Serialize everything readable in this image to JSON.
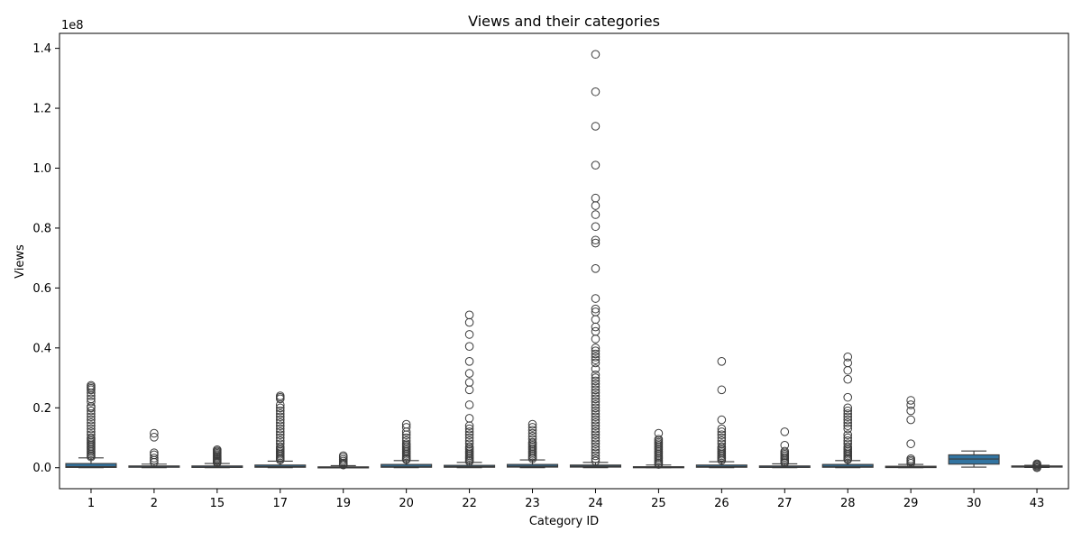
{
  "chart_data": {
    "type": "box",
    "title": "Views and their categories",
    "xlabel": "Category ID",
    "ylabel": "Views",
    "y_multiplier_label": "1e8",
    "ylim": [
      -7000000,
      145000000
    ],
    "yticks": [
      0,
      20000000,
      40000000,
      60000000,
      80000000,
      100000000,
      120000000,
      140000000
    ],
    "ytick_labels": [
      "0.0",
      "0.2",
      "0.4",
      "0.6",
      "0.8",
      "1.0",
      "1.2",
      "1.4"
    ],
    "box_color": "#3274a1",
    "edge_color": "#3b3b3b",
    "grid": false,
    "categories": [
      "1",
      "2",
      "15",
      "17",
      "19",
      "20",
      "22",
      "23",
      "24",
      "25",
      "26",
      "27",
      "28",
      "29",
      "30",
      "43"
    ],
    "boxes": [
      {
        "category": "1",
        "whisker_low": 0,
        "q1": 100000,
        "median": 400000,
        "q3": 1400000,
        "whisker_high": 3300000,
        "outliers": [
          27500000,
          27000000,
          26500000,
          26000000,
          25000000,
          24000000,
          23000000,
          22000000,
          20500000,
          20000000,
          19000000,
          18000000,
          17000000,
          16000000,
          15000000,
          14000000,
          13000000,
          12000000,
          11000000,
          10000000,
          9500000,
          9000000,
          8500000,
          8000000,
          7500000,
          7000000,
          6500000,
          6000000,
          5500000,
          5000000,
          4500000,
          4000000,
          3600000
        ]
      },
      {
        "category": "2",
        "whisker_low": 0,
        "q1": 150000,
        "median": 300000,
        "q3": 600000,
        "whisker_high": 1200000,
        "outliers": [
          11500000,
          10200000,
          5000000,
          4300000,
          3200000,
          2500000,
          1800000
        ]
      },
      {
        "category": "15",
        "whisker_low": 0,
        "q1": 100000,
        "median": 250000,
        "q3": 600000,
        "whisker_high": 1400000,
        "outliers": [
          6000000,
          5600000,
          5200000,
          4800000,
          4400000,
          4000000,
          3600000,
          3200000,
          2800000,
          2400000,
          2000000,
          1700000
        ]
      },
      {
        "category": "17",
        "whisker_low": 0,
        "q1": 150000,
        "median": 400000,
        "q3": 900000,
        "whisker_high": 2200000,
        "outliers": [
          24000000,
          23500000,
          23000000,
          21000000,
          20000000,
          19000000,
          18000000,
          17000000,
          16000000,
          15000000,
          14000000,
          13000000,
          12000000,
          11000000,
          10000000,
          9000000,
          8000000,
          7000000,
          6500000,
          6000000,
          5500000,
          5000000,
          4500000,
          4000000,
          3500000,
          3000000,
          2600000
        ]
      },
      {
        "category": "19",
        "whisker_low": 0,
        "q1": 50000,
        "median": 120000,
        "q3": 300000,
        "whisker_high": 700000,
        "outliers": [
          4000000,
          3500000,
          2800000,
          2200000,
          1600000,
          1200000,
          900000
        ]
      },
      {
        "category": "20",
        "whisker_low": 0,
        "q1": 150000,
        "median": 450000,
        "q3": 1100000,
        "whisker_high": 2400000,
        "outliers": [
          14500000,
          13500000,
          12000000,
          11000000,
          10000000,
          9000000,
          8000000,
          7500000,
          7000000,
          6500000,
          6000000,
          5500000,
          5000000,
          4500000,
          4000000,
          3500000,
          3000000,
          2700000
        ]
      },
      {
        "category": "22",
        "whisker_low": 0,
        "q1": 150000,
        "median": 400000,
        "q3": 800000,
        "whisker_high": 1800000,
        "outliers": [
          51000000,
          48500000,
          44500000,
          40500000,
          35500000,
          31500000,
          28500000,
          26000000,
          21000000,
          16500000,
          14000000,
          13000000,
          12000000,
          11000000,
          10000000,
          9000000,
          8000000,
          7000000,
          6500000,
          6000000,
          5500000,
          5000000,
          4500000,
          4000000,
          3500000,
          3000000,
          2500000,
          2100000
        ]
      },
      {
        "category": "23",
        "whisker_low": 0,
        "q1": 200000,
        "median": 500000,
        "q3": 1100000,
        "whisker_high": 2600000,
        "outliers": [
          14500000,
          13500000,
          12500000,
          11500000,
          10500000,
          9500000,
          8500000,
          8000000,
          7500000,
          7000000,
          6500000,
          6000000,
          5500000,
          5000000,
          4500000,
          4000000,
          3500000,
          3000000
        ]
      },
      {
        "category": "24",
        "whisker_low": 0,
        "q1": 200000,
        "median": 500000,
        "q3": 900000,
        "whisker_high": 1800000,
        "outliers": [
          138000000,
          125500000,
          114000000,
          101000000,
          90000000,
          87500000,
          84500000,
          80500000,
          76000000,
          75000000,
          66500000,
          56500000,
          53000000,
          52000000,
          49500000,
          47000000,
          45500000,
          43000000,
          40000000,
          39000000,
          38000000,
          37000000,
          36000000,
          35000000,
          33000000,
          31000000,
          30000000,
          29000000,
          28000000,
          27000000,
          26000000,
          25000000,
          24000000,
          23000000,
          22000000,
          21000000,
          20000000,
          19000000,
          18000000,
          17000000,
          16000000,
          15000000,
          14000000,
          13000000,
          12000000,
          11000000,
          10000000,
          9000000,
          8000000,
          7000000,
          6000000,
          5000000,
          4000000,
          3000000,
          2200000
        ]
      },
      {
        "category": "25",
        "whisker_low": 0,
        "q1": 50000,
        "median": 150000,
        "q3": 350000,
        "whisker_high": 900000,
        "outliers": [
          11500000,
          9500000,
          9000000,
          8500000,
          8000000,
          7500000,
          7000000,
          6500000,
          6000000,
          5500000,
          5000000,
          4500000,
          4000000,
          3500000,
          3000000,
          2500000,
          2000000,
          1500000,
          1100000
        ]
      },
      {
        "category": "26",
        "whisker_low": 0,
        "q1": 150000,
        "median": 400000,
        "q3": 900000,
        "whisker_high": 2000000,
        "outliers": [
          35500000,
          26000000,
          16000000,
          13000000,
          12000000,
          11000000,
          10000000,
          9000000,
          8000000,
          7000000,
          6500000,
          6000000,
          5500000,
          5000000,
          4500000,
          4000000,
          3500000,
          3000000,
          2500000
        ]
      },
      {
        "category": "27",
        "whisker_low": 0,
        "q1": 100000,
        "median": 250000,
        "q3": 600000,
        "whisker_high": 1300000,
        "outliers": [
          12000000,
          7500000,
          5500000,
          5000000,
          4500000,
          4000000,
          3500000,
          3000000,
          2500000,
          2000000,
          1600000
        ]
      },
      {
        "category": "28",
        "whisker_low": 0,
        "q1": 150000,
        "median": 450000,
        "q3": 1100000,
        "whisker_high": 2400000,
        "outliers": [
          37000000,
          35000000,
          32500000,
          29500000,
          23500000,
          20000000,
          19000000,
          18000000,
          17000000,
          16000000,
          15000000,
          14000000,
          13000000,
          11000000,
          10000000,
          9000000,
          8000000,
          7000000,
          6500000,
          6000000,
          5500000,
          5000000,
          4500000,
          4000000,
          3500000,
          3000000,
          2700000
        ]
      },
      {
        "category": "29",
        "whisker_low": 0,
        "q1": 50000,
        "median": 200000,
        "q3": 500000,
        "whisker_high": 1100000,
        "outliers": [
          22500000,
          21000000,
          19000000,
          16000000,
          8000000,
          3000000,
          2500000,
          2000000,
          1500000
        ]
      },
      {
        "category": "30",
        "whisker_low": 200000,
        "q1": 1200000,
        "median": 2900000,
        "q3": 4300000,
        "whisker_high": 5600000,
        "outliers": []
      },
      {
        "category": "43",
        "whisker_low": 100000,
        "q1": 200000,
        "median": 350000,
        "q3": 600000,
        "whisker_high": 800000,
        "outliers": [
          1300000,
          1000000,
          700000,
          300000,
          0
        ]
      }
    ]
  }
}
